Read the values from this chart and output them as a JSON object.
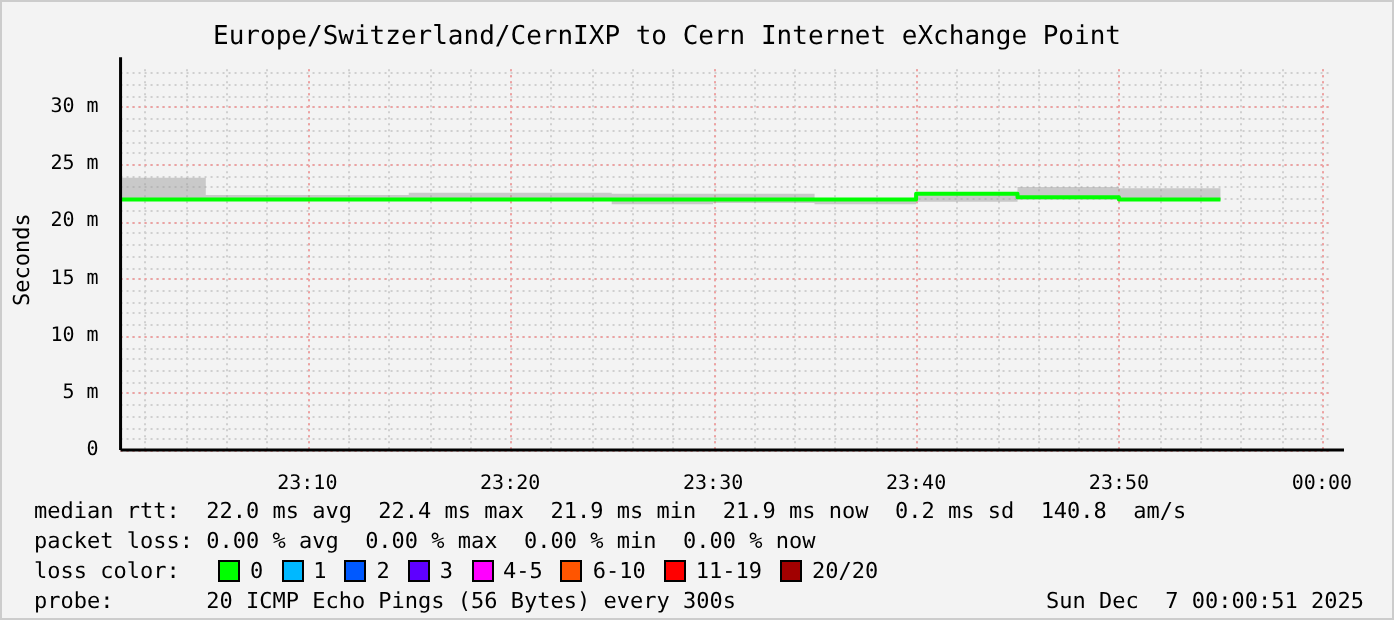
{
  "chart_data": {
    "type": "step",
    "title": "Europe/Switzerland/CernIXP to Cern Internet eXchange Point",
    "ylabel": "Seconds",
    "x": [
      23.0133,
      23.0833,
      23.1667,
      23.25,
      23.3333,
      23.4167,
      23.5,
      23.5833,
      23.6667,
      23.75,
      23.8333,
      23.9167
    ],
    "series": [
      {
        "color": "#00ff00",
        "values": [
          21.9,
          21.9,
          21.9,
          21.9,
          21.9,
          21.9,
          21.9,
          21.9,
          22.4,
          22.1,
          21.9,
          21.9
        ],
        "lower": [
          21.8,
          21.8,
          21.8,
          21.8,
          21.8,
          21.5,
          21.6,
          21.5,
          21.7,
          21.9,
          21.8,
          21.8
        ],
        "upper": [
          23.8,
          22.3,
          22.3,
          22.5,
          22.5,
          22.4,
          22.4,
          22.0,
          22.4,
          23.0,
          22.9,
          22.9
        ]
      }
    ],
    "xlim": [
      23.0133,
      24.0083
    ],
    "xticks": [
      {
        "value": 23.1667,
        "label": "23:10"
      },
      {
        "value": 23.3333,
        "label": "23:20"
      },
      {
        "value": 23.5,
        "label": "23:30"
      },
      {
        "value": 23.6667,
        "label": "23:40"
      },
      {
        "value": 23.8333,
        "label": "23:50"
      },
      {
        "value": 24,
        "label": "00:00"
      }
    ],
    "ylim": [
      0,
      33.3
    ],
    "yticks": [
      0,
      {
        "value": 5,
        "label": "5 m"
      },
      {
        "value": 10,
        "label": "10 m"
      },
      {
        "value": 15,
        "label": "15 m"
      },
      {
        "value": 20,
        "label": "20 m"
      },
      {
        "value": 25,
        "label": "25 m"
      },
      {
        "value": 30,
        "label": "30 m"
      }
    ],
    "grid": true,
    "annotations": [
      "median rtt:  22.0 ms avg  22.4 ms max  21.9 ms min  21.9 ms now  0.2 ms sd  140.8  am/s",
      "packet loss: 0.00 % avg  0.00 % max  0.00 % min  0.00 % now",
      "loss color:",
      "0",
      "1",
      "2",
      "3",
      "4-5",
      "6-10",
      "11-19",
      "20/20",
      "probe:       20 ICMP Echo Pings (56 Bytes) every 300s",
      "Sun Dec  7 00:00:51 2025"
    ]
  }
}
